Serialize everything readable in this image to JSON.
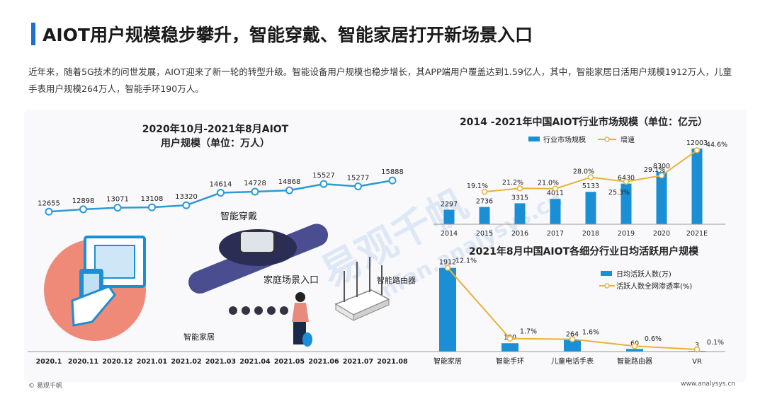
{
  "header": {
    "title": "AIOT用户规模稳步攀升，智能穿戴、智能家居打开新场景入口",
    "intro": "近年来，随着5G技术的问世发展，AIOT迎来了新一轮的转型升级。智能设备用户规模也稳步增长，其APP端用户覆盖达到1.59亿人，其中，智能家居日活用户规模1912万人，儿童手表用户规模264万人，智能手环190万人。"
  },
  "illustration": {
    "wearable_label": "智能穿戴",
    "home_entry_label": "家庭场景入口",
    "router_label": "智能路由器",
    "smart_home_label": "智能家居",
    "watermark_cn": "易观千帆",
    "watermark_en": "qianfan.analysys.cn"
  },
  "footer": {
    "left": "© 易观千帆",
    "right": "www.analysys.cn"
  },
  "chart_data": [
    {
      "type": "line",
      "title": "2020年10月-2021年8月AIOT 用户规模（单位：万人）",
      "title_lines": [
        "2020年10月-2021年8月AIOT",
        "用户规模（单位：万人）"
      ],
      "categories": [
        "2020.1",
        "2020.11",
        "2020.12",
        "2021.01",
        "2021.02",
        "2021.03",
        "2021.04",
        "2021.05",
        "2021.06",
        "2021.07",
        "2021.08"
      ],
      "values": [
        12655,
        12898,
        13071,
        13108,
        13320,
        14614,
        14728,
        14868,
        15527,
        15277,
        15888
      ],
      "color": "#2b9ad6",
      "grid": false
    },
    {
      "type": "bar",
      "title": "2014 -2021年中国AIOT行业市场规模（单位：亿元）",
      "categories": [
        "2014",
        "2015",
        "2016",
        "2017",
        "2018",
        "2019",
        "2020",
        "2021E"
      ],
      "series": [
        {
          "name": "行业市场规模",
          "type": "bar",
          "values": [
            2297,
            2736,
            3315,
            4011,
            5133,
            6430,
            8300,
            12003
          ],
          "color": "#1a8fd6"
        },
        {
          "name": "增速",
          "type": "line",
          "axis": "right",
          "values": [
            null,
            19.1,
            21.2,
            21.0,
            28.0,
            25.3,
            29.1,
            44.6
          ],
          "labels": [
            "",
            "19.1%",
            "21.2%",
            "21.0%",
            "28.0%",
            "25.3%",
            "29.1%",
            "44.6%"
          ],
          "color": "#e8b23a"
        }
      ],
      "ylim": [
        0,
        13000
      ],
      "y2lim": [
        0,
        50
      ],
      "legend": "top"
    },
    {
      "type": "bar",
      "title": "2021年8月中国AIOT各细分行业日均活跃用户规模",
      "categories": [
        "智能家居",
        "智能手环",
        "儿童电话手表",
        "智能路由器",
        "VR"
      ],
      "series": [
        {
          "name": "日均活跃人数(万)",
          "type": "bar",
          "values": [
            1912,
            190,
            264,
            60,
            3
          ],
          "color": "#1a8fd6"
        },
        {
          "name": "活跃人数全网渗透率(%)",
          "type": "line",
          "axis": "right",
          "values": [
            12.1,
            1.7,
            1.6,
            0.6,
            0.1
          ],
          "labels": [
            "12.1%",
            "1.7%",
            "1.6%",
            "0.6%",
            "0.1%"
          ],
          "color": "#e8b23a"
        }
      ],
      "ylim": [
        0,
        2100
      ],
      "y2lim": [
        0,
        13
      ],
      "legend": "top-right"
    }
  ]
}
